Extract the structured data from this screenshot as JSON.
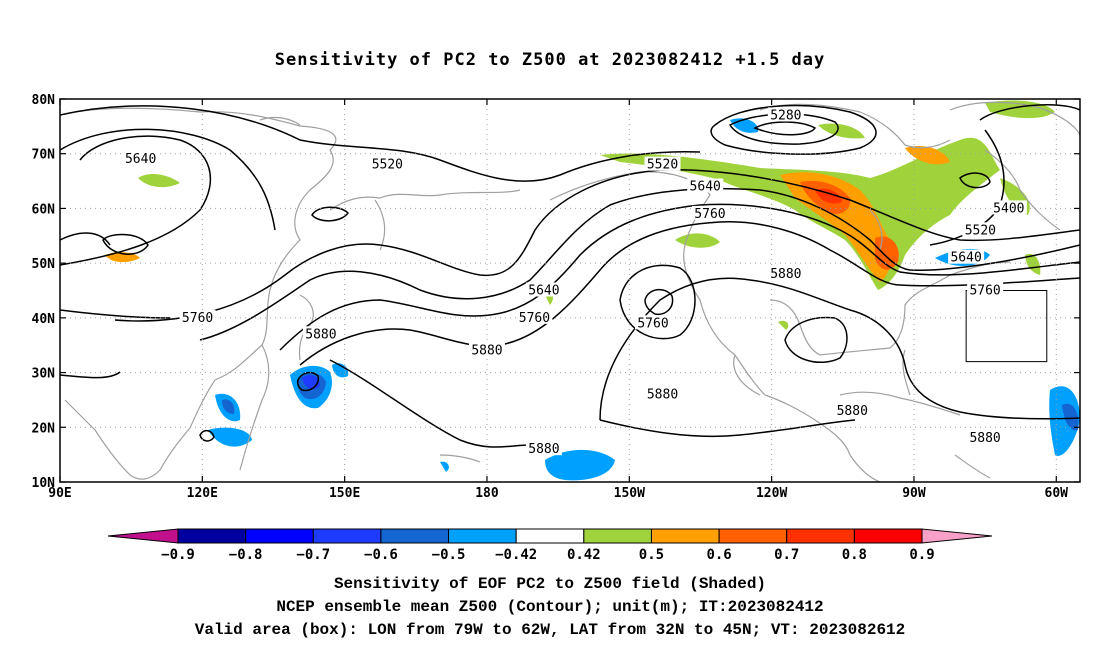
{
  "title": "Sensitivity of PC2 to Z500 at 2023082412 +1.5 day",
  "map": {
    "lat_labels": [
      "80N",
      "70N",
      "60N",
      "50N",
      "40N",
      "30N",
      "20N",
      "10N"
    ],
    "lon_labels": [
      "90E",
      "120E",
      "150E",
      "180",
      "150W",
      "120W",
      "90W",
      "60W"
    ],
    "lat_range": [
      10,
      80
    ],
    "lon_range": [
      90,
      305
    ],
    "gridlines": "dotted",
    "contour_color": "#000000",
    "coastline_color": "#a0a0a0",
    "contour_labels": [
      {
        "text": "5280",
        "lon": 243,
        "lat": 77
      },
      {
        "text": "5640",
        "lon": 107,
        "lat": 69
      },
      {
        "text": "5520",
        "lon": 159,
        "lat": 68
      },
      {
        "text": "5520",
        "lon": 217,
        "lat": 68
      },
      {
        "text": "5640",
        "lon": 226,
        "lat": 64
      },
      {
        "text": "5760",
        "lon": 227,
        "lat": 59
      },
      {
        "text": "5400",
        "lon": 290,
        "lat": 60
      },
      {
        "text": "5520",
        "lon": 284,
        "lat": 56
      },
      {
        "text": "5640",
        "lon": 281,
        "lat": 51
      },
      {
        "text": "5640",
        "lon": 192,
        "lat": 45
      },
      {
        "text": "5760",
        "lon": 285,
        "lat": 45
      },
      {
        "text": "5880",
        "lon": 243,
        "lat": 48
      },
      {
        "text": "5760",
        "lon": 119,
        "lat": 40
      },
      {
        "text": "5760",
        "lon": 190,
        "lat": 40
      },
      {
        "text": "5760",
        "lon": 215,
        "lat": 39
      },
      {
        "text": "5880",
        "lon": 145,
        "lat": 37
      },
      {
        "text": "5880",
        "lon": 180,
        "lat": 34
      },
      {
        "text": "5880",
        "lon": 217,
        "lat": 26
      },
      {
        "text": "5880",
        "lon": 257,
        "lat": 23
      },
      {
        "text": "5880",
        "lon": 192,
        "lat": 16
      },
      {
        "text": "5880",
        "lon": 285,
        "lat": 18
      }
    ],
    "valid_box": {
      "lon_min": 281,
      "lon_max": 298,
      "lat_min": 32,
      "lat_max": 45
    }
  },
  "colorbar": {
    "labels": [
      "-0.9",
      "-0.8",
      "-0.7",
      "-0.6",
      "-0.5",
      "-0.42",
      "0.42",
      "0.5",
      "0.6",
      "0.7",
      "0.8",
      "0.9"
    ],
    "colors": [
      "#0000a0",
      "#0000ff",
      "#1e3cff",
      "#1464d2",
      "#00a0ff",
      "#ffffff",
      "#a0d23c",
      "#ffa000",
      "#ff6000",
      "#ff3200",
      "#ff0000"
    ],
    "under_color": "#c0108c",
    "over_color": "#f8a0c8"
  },
  "captions": {
    "line1": "Sensitivity of EOF PC2 to Z500 field (Shaded)",
    "line2": "NCEP ensemble mean Z500 (Contour); unit(m); IT:2023082412",
    "line3": "Valid area (box): LON from 79W to 62W, LAT from 32N to 45N; VT: 2023082612"
  }
}
